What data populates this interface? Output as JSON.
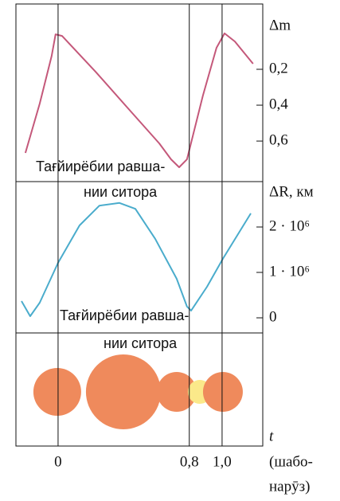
{
  "chart_data": [
    {
      "type": "line",
      "ylabel": "Δm",
      "invert": true,
      "xlim": [
        -0.257,
        1.248
      ],
      "ylim": [
        -0.164,
        0.826
      ],
      "yticks": [
        {
          "value": 0.2,
          "label": "0,2"
        },
        {
          "value": 0.4,
          "label": "0,4"
        },
        {
          "value": 0.6,
          "label": "0,6"
        }
      ],
      "x": [
        -0.199,
        -0.112,
        -0.039,
        -0.015,
        0.024,
        0.228,
        0.422,
        0.617,
        0.689,
        0.738,
        0.786,
        0.883,
        0.966,
        1.015,
        1.078,
        1.189
      ],
      "series": [
        {
          "color": "#c4587a",
          "values": [
            0.666,
            0.391,
            0.125,
            0.005,
            0.014,
            0.213,
            0.413,
            0.613,
            0.702,
            0.746,
            0.702,
            0.347,
            0.08,
            0.0,
            0.045,
            0.169
          ]
        }
      ],
      "annotation": [
        "Тағйирёбии равша-",
        "нии ситора"
      ]
    },
    {
      "type": "line",
      "ylabel": "ΔR, км",
      "xlim": [
        -0.257,
        1.248
      ],
      "ylim": [
        -333000,
        3000000
      ],
      "yticks": [
        {
          "value": 0,
          "label": "0"
        },
        {
          "value": 1000000,
          "label": "1 · 10⁶"
        },
        {
          "value": 2000000,
          "label": "2 · 10⁶"
        }
      ],
      "x": [
        -0.223,
        -0.17,
        -0.112,
        0,
        0.131,
        0.252,
        0.374,
        0.471,
        0.592,
        0.723,
        0.786,
        0.811,
        0.908,
        1.005,
        1.175
      ],
      "series": [
        {
          "color": "#4aaccc",
          "values": [
            368000,
            35000,
            333000,
            1210000,
            2035000,
            2470000,
            2530000,
            2400000,
            1740000,
            860000,
            250000,
            158000,
            684000,
            1300000,
            2300000
          ]
        }
      ],
      "annotation": [
        "Тағйирёбии равша-",
        "нии ситора"
      ]
    },
    {
      "type": "bubble",
      "xlim": [
        -0.257,
        1.248
      ],
      "xticks": [
        {
          "value": 0,
          "label": "0"
        },
        {
          "value": 0.8,
          "label": "0,8"
        },
        {
          "value": 1.0,
          "label": "1,0"
        }
      ],
      "xlabel": [
        "t",
        "(шабо-",
        "нарӯз)"
      ],
      "x": [
        -0.005,
        0.398,
        0.723,
        0.864,
        1.005
      ],
      "sizes": [
        30,
        47,
        25,
        15,
        25
      ],
      "colors": [
        "#ef8a5c",
        "#ef8a5c",
        "#ef8a5c",
        "#fbe98a",
        "#ef8a5c"
      ]
    }
  ]
}
